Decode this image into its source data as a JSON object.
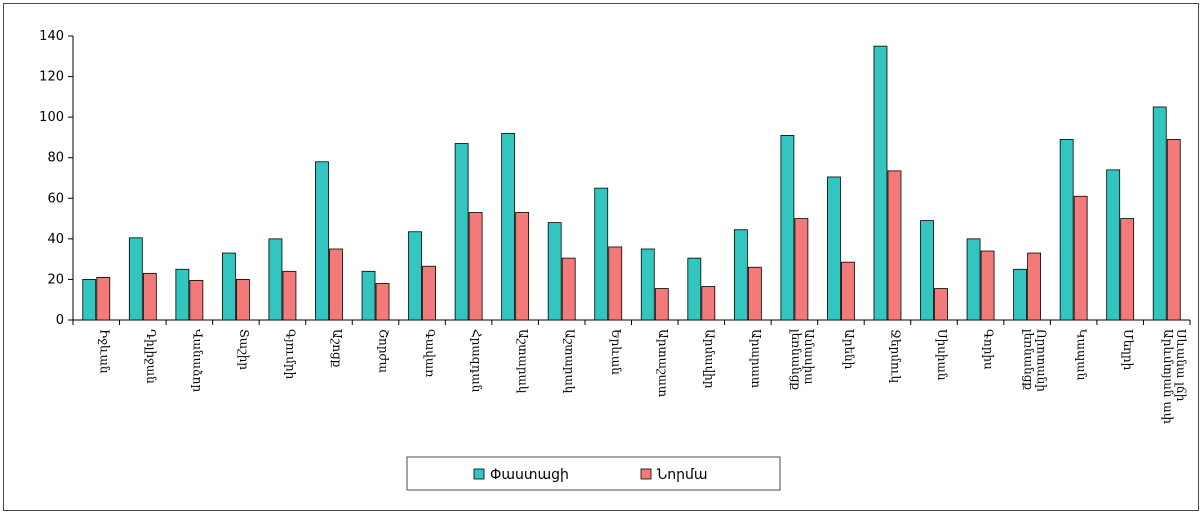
{
  "chart_data": {
    "type": "bar",
    "categories": [
      [
        "Իջևան"
      ],
      [
        "Դիլիջան"
      ],
      [
        "Վանաձոր"
      ],
      [
        "Տաշիր"
      ],
      [
        "Գյումրի"
      ],
      [
        "Աշոցք"
      ],
      [
        "Շորժա"
      ],
      [
        "Գավառ"
      ],
      [
        "Հրազդան"
      ],
      [
        "Աշտարակ"
      ],
      [
        "Աշտարակ"
      ],
      [
        "Երևան"
      ],
      [
        "Արտաշատ"
      ],
      [
        "Արմավիր"
      ],
      [
        "Արարատ"
      ],
      [
        "Ամասիա",
        "լեռնանցք"
      ],
      [
        "Արենի"
      ],
      [
        "Ջերմուկ"
      ],
      [
        "Սիսիան"
      ],
      [
        "Գորիս"
      ],
      [
        "Որոտանի",
        "լեռնանցք"
      ],
      [
        "Կապան"
      ],
      [
        "Մեղրի"
      ],
      [
        "Սևանա լճի",
        "Արևմտյան ափ"
      ]
    ],
    "series": [
      {
        "name": "Փաստացի",
        "color": "#33C6C0",
        "values": [
          20,
          40.5,
          25,
          33,
          40,
          78,
          24,
          43.5,
          87,
          92,
          48,
          65,
          35,
          30.5,
          44.5,
          91,
          70.5,
          135,
          49,
          40,
          25,
          89,
          74,
          105
        ]
      },
      {
        "name": "Նորմա",
        "color": "#F47A7A",
        "values": [
          21,
          23,
          19.5,
          20,
          24,
          35,
          18,
          26.5,
          53,
          53,
          30.5,
          36,
          15.5,
          16.5,
          26,
          50,
          28.5,
          73.5,
          15.5,
          34,
          33,
          61,
          50,
          89
        ]
      }
    ],
    "ylim": [
      0,
      140
    ],
    "yticks": [
      "0",
      "20",
      "40",
      "60",
      "80",
      "100",
      "120",
      "140"
    ],
    "grid": false,
    "legend": "bottom",
    "title": "",
    "xlabel": "",
    "ylabel": ""
  }
}
